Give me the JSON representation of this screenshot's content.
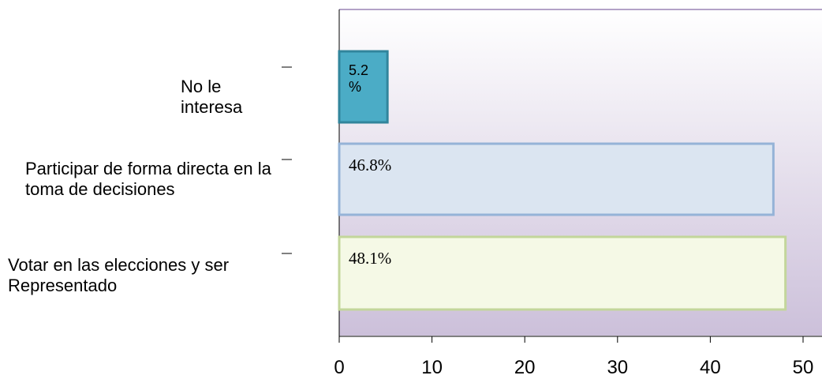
{
  "chart_data": {
    "type": "hbar",
    "categories": [
      "No le interesa",
      "Participar de forma directa en la toma de decisiones",
      "Votar en las elecciones y ser Representado"
    ],
    "values": [
      5.2,
      46.8,
      48.1
    ],
    "value_labels": [
      "5.2 %",
      "46.8%",
      "48.1%"
    ],
    "colors": [
      "#4bacc6",
      "#dbe5f1",
      "#f5f9e6"
    ],
    "xlim": [
      0,
      50
    ],
    "xticks": [
      0,
      10,
      20,
      30,
      40,
      50
    ]
  }
}
